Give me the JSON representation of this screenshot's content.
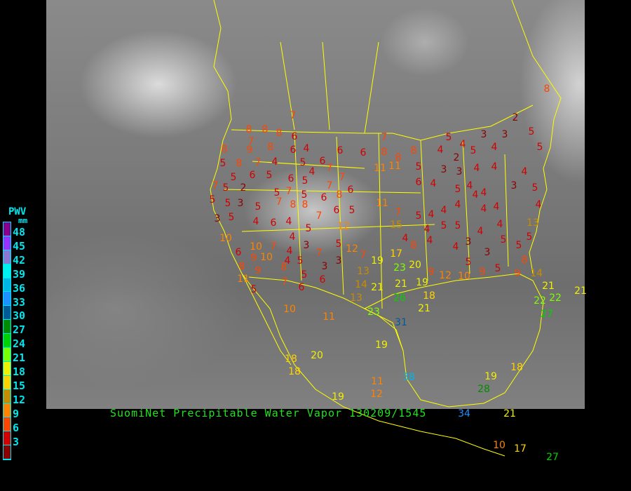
{
  "title": "SuomiNet Precipitable Water Vapor 130209/1545",
  "legend": {
    "title": "PWV",
    "unit": "mm",
    "ticks": [
      "48",
      "45",
      "42",
      "39",
      "36",
      "33",
      "30",
      "27",
      "24",
      "21",
      "18",
      "15",
      "12",
      "9",
      "6",
      "3"
    ],
    "colors": [
      "#8b008b",
      "#9932ff",
      "#8c78d2",
      "#00f0f0",
      "#00b4e6",
      "#1e90ff",
      "#005a96",
      "#008c00",
      "#00d200",
      "#7cff00",
      "#f0f000",
      "#ffd200",
      "#c88c00",
      "#ff8200",
      "#ff4600",
      "#d20000",
      "#8b0000"
    ]
  },
  "map_colors": {
    "border": "#ffff00",
    "background": "#000000"
  },
  "stations": [
    7,
    8,
    8,
    8,
    6,
    7,
    8,
    9,
    8,
    6,
    4,
    6,
    6,
    8,
    7,
    8,
    8,
    4,
    4,
    4,
    3,
    2,
    5,
    8,
    5,
    5,
    2,
    5,
    3,
    5,
    8,
    7,
    4,
    5,
    6,
    6,
    5,
    4,
    7,
    11,
    11,
    5,
    3,
    3,
    4,
    4,
    4,
    5,
    7,
    5,
    2,
    5,
    6,
    5,
    7,
    7,
    6,
    4,
    5,
    4,
    4,
    3,
    5,
    5,
    5,
    3,
    5,
    7,
    8,
    7,
    5,
    6,
    8,
    6,
    11,
    6,
    5,
    7,
    8,
    4,
    4,
    4,
    4,
    4,
    4,
    3,
    5,
    4,
    6,
    4,
    5,
    12,
    7,
    5,
    4,
    5,
    4,
    5,
    13,
    15,
    4,
    10,
    10,
    7,
    4,
    4,
    3,
    5,
    12,
    8,
    4,
    4,
    3,
    4,
    4,
    5,
    6,
    9,
    10,
    4,
    5,
    7,
    3,
    3,
    7,
    17,
    19,
    13,
    23,
    20,
    9,
    12,
    5,
    3,
    5,
    5,
    8,
    8,
    9,
    8,
    5,
    11,
    5,
    7,
    6,
    6,
    14,
    21,
    21,
    19,
    18,
    10,
    9,
    5,
    9,
    14,
    21,
    22,
    22,
    27,
    21,
    13,
    26,
    21,
    23,
    31,
    10,
    11,
    19,
    20,
    18,
    18,
    18,
    19,
    28,
    38,
    11,
    12,
    19,
    34,
    21,
    10,
    17,
    27
  ]
}
